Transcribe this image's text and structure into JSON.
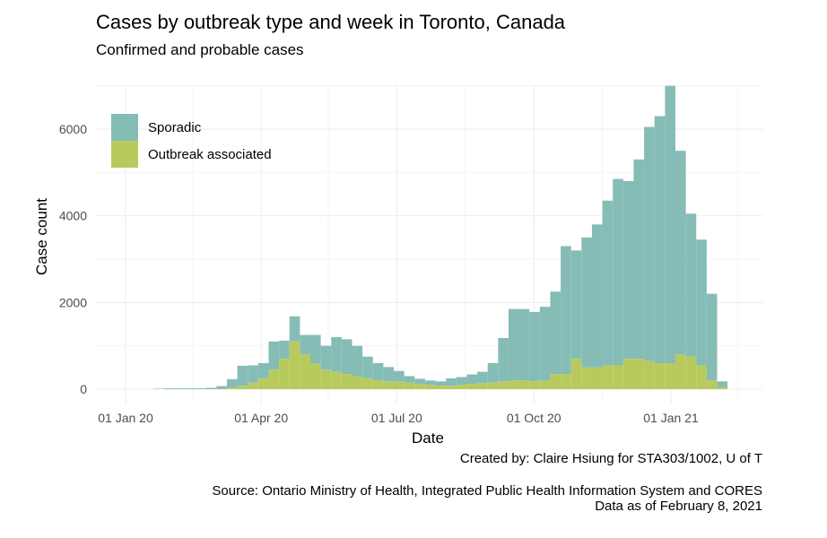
{
  "title": "Cases by outbreak type and week in Toronto, Canada",
  "subtitle": "Confirmed and probable cases",
  "caption": {
    "created_by": "Created by: Claire Hsiung for STA303/1002, U of T",
    "source": "Source: Ontario Ministry of Health, Integrated Public Health Information System and CORES",
    "data_as_of": "Data as of February 8, 2021"
  },
  "colors": {
    "sporadic": "#86BCB6",
    "outbreak": "#B9CA5D",
    "grid_major": "#EBEBEB",
    "grid_minor": "#F4F4F4"
  },
  "chart_data": {
    "type": "bar",
    "stacked": true,
    "title": "Cases by outbreak type and week in Toronto, Canada",
    "subtitle": "Confirmed and probable cases",
    "xlabel": "Date",
    "ylabel": "Case count",
    "ylim": [
      0,
      7000
    ],
    "y_ticks": [
      0,
      2000,
      4000,
      6000
    ],
    "x_ticks": [
      "01 Jan 20",
      "01 Apr 20",
      "01 Jul 20",
      "01 Oct 20",
      "01 Jan 21"
    ],
    "grid": true,
    "legend_position": "top-left",
    "week_start": [
      "2020-01-20",
      "2020-01-27",
      "2020-02-03",
      "2020-02-10",
      "2020-02-17",
      "2020-02-24",
      "2020-03-02",
      "2020-03-09",
      "2020-03-16",
      "2020-03-23",
      "2020-03-30",
      "2020-04-06",
      "2020-04-13",
      "2020-04-20",
      "2020-04-27",
      "2020-05-04",
      "2020-05-11",
      "2020-05-18",
      "2020-05-25",
      "2020-06-01",
      "2020-06-08",
      "2020-06-15",
      "2020-06-22",
      "2020-06-29",
      "2020-07-06",
      "2020-07-13",
      "2020-07-20",
      "2020-07-27",
      "2020-08-03",
      "2020-08-10",
      "2020-08-17",
      "2020-08-24",
      "2020-08-31",
      "2020-09-07",
      "2020-09-14",
      "2020-09-21",
      "2020-09-28",
      "2020-10-05",
      "2020-10-12",
      "2020-10-19",
      "2020-10-26",
      "2020-11-02",
      "2020-11-09",
      "2020-11-16",
      "2020-11-23",
      "2020-11-30",
      "2020-12-07",
      "2020-12-14",
      "2020-12-21",
      "2020-12-28",
      "2021-01-04",
      "2021-01-11",
      "2021-01-18",
      "2021-01-25",
      "2021-02-01"
    ],
    "series": [
      {
        "name": "Outbreak associated",
        "values": [
          0,
          0,
          0,
          0,
          0,
          0,
          10,
          30,
          80,
          150,
          250,
          450,
          700,
          1100,
          800,
          600,
          450,
          400,
          350,
          300,
          250,
          200,
          180,
          170,
          150,
          120,
          100,
          80,
          80,
          100,
          120,
          140,
          150,
          180,
          200,
          200,
          180,
          200,
          350,
          350,
          700,
          500,
          500,
          550,
          550,
          700,
          700,
          650,
          600,
          600,
          800,
          750,
          550,
          200,
          40
        ]
      },
      {
        "name": "Sporadic",
        "values": [
          10,
          20,
          20,
          20,
          20,
          30,
          60,
          200,
          460,
          400,
          350,
          650,
          420,
          580,
          450,
          650,
          550,
          800,
          800,
          700,
          500,
          400,
          330,
          250,
          150,
          120,
          100,
          100,
          170,
          180,
          220,
          260,
          450,
          1000,
          1650,
          1650,
          1600,
          1700,
          1900,
          2950,
          2500,
          3000,
          3300,
          3800,
          4300,
          4100,
          4600,
          5400,
          5700,
          6400,
          4700,
          3300,
          2900,
          2000,
          140
        ]
      }
    ]
  }
}
